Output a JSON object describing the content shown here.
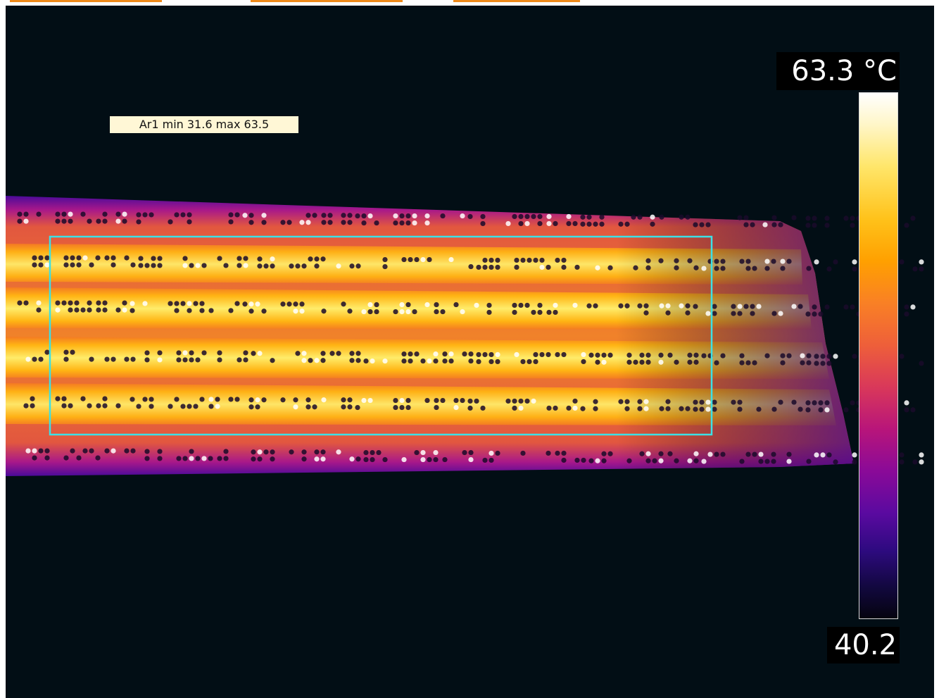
{
  "measurement": {
    "area_label": "Ar1 min 31.6 max 63.5",
    "roi_color": "#3ce0e6"
  },
  "scale": {
    "max_label": "63.3 °C",
    "min_label": "40.2",
    "palette": [
      "#ffffff",
      "#ffe66a",
      "#ffa000",
      "#ee5f3a",
      "#b8157a",
      "#5a0aa0",
      "#05040f"
    ]
  },
  "colors": {
    "background": "#020e15",
    "hot": "#ffe04a",
    "warm": "#f98f1e",
    "cool_edge": "#6a0c9c"
  }
}
